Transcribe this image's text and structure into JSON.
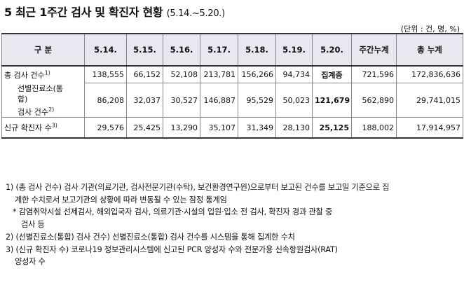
{
  "title": {
    "main": "5  최근 1주간 검사 및 확진자 현황",
    "range": "(5.14.~5.20.)"
  },
  "unit": "(단위 : 건, 명, %)",
  "table": {
    "headers": [
      "구 분",
      "5.14.",
      "5.15.",
      "5.16.",
      "5.17.",
      "5.18.",
      "5.19.",
      "5.20.",
      "주간누계",
      "총 누계"
    ],
    "rows": [
      {
        "label": "총 검사 건수",
        "sup": "1)",
        "values": [
          "138,555",
          "66,152",
          "52,108",
          "213,781",
          "156,266",
          "94,734",
          "집계중",
          "721,596",
          "172,836,636"
        ]
      },
      {
        "label_line1": "선별진료소(통",
        "label_line2": "합)",
        "label_line3": "검사 건수",
        "sup": "2)",
        "values": [
          "86,208",
          "32,037",
          "30,527",
          "146,887",
          "95,529",
          "50,023",
          "121,679",
          "562,890",
          "29,741,015"
        ]
      },
      {
        "label": "신규 확진자 수",
        "sup": "3)",
        "values": [
          "29,576",
          "25,425",
          "13,290",
          "35,107",
          "31,349",
          "28,130",
          "25,125",
          "188,002",
          "17,914,957"
        ]
      }
    ]
  },
  "notes": [
    {
      "line1": "1) (총 검사 건수) 검사 기관(의료기관, 검사전문기관(수탁), 보건환경연구원)으로부터 보고된 건수를 보고일 기준으로 집",
      "line2": "계한 수치로서 보고기관의 상황에 따라 변동될 수 있는 잠정 통계임"
    },
    {
      "line1": "* 감염취약시설 선제검사, 해외입국자 검사, 의료기관·시설의 입원·입소 전 검사, 확진자 경과 관찰 중",
      "line2": "검사 등"
    },
    {
      "line1": "2) (선별진료소(통합) 검사 건수) 선별진료소(통합) 검사 건수를 시스템을 통해 집계한 수치",
      "line2": ""
    },
    {
      "line1": "3) (신규 확진자 수) 코로나19 정보관리시스템에 신고된 PCR 양성자 수와 전문가용 신속항원검사(RAT)",
      "line2": "양성자 수"
    }
  ]
}
